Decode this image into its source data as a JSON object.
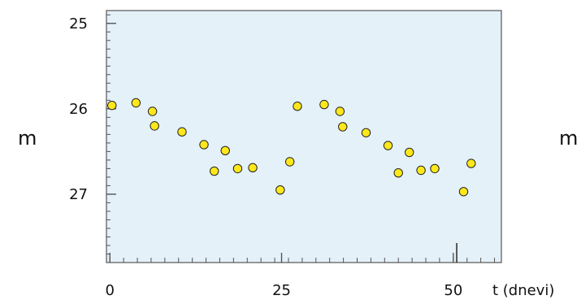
{
  "chart_data": {
    "type": "scatter",
    "title": "",
    "ylabel": "m",
    "xlabel": "t (dnevi)",
    "right_label": "m",
    "y_inverted": true,
    "xlim": [
      -0.5,
      57
    ],
    "ylim": [
      27.8,
      24.85
    ],
    "x_ticks": [
      0,
      25,
      50
    ],
    "x_tick_labels": [
      "0",
      "25",
      "50"
    ],
    "y_ticks": [
      25,
      26,
      27
    ],
    "y_tick_labels": [
      "25",
      "26",
      "27"
    ],
    "points": [
      {
        "x": 0.3,
        "y": 25.96
      },
      {
        "x": 3.8,
        "y": 25.93
      },
      {
        "x": 6.2,
        "y": 26.03
      },
      {
        "x": 6.5,
        "y": 26.2
      },
      {
        "x": 10.5,
        "y": 26.27
      },
      {
        "x": 13.7,
        "y": 26.42
      },
      {
        "x": 15.2,
        "y": 26.73
      },
      {
        "x": 16.8,
        "y": 26.49
      },
      {
        "x": 18.6,
        "y": 26.7
      },
      {
        "x": 20.8,
        "y": 26.69
      },
      {
        "x": 24.8,
        "y": 26.95
      },
      {
        "x": 26.2,
        "y": 26.62
      },
      {
        "x": 27.3,
        "y": 25.97
      },
      {
        "x": 31.2,
        "y": 25.95
      },
      {
        "x": 33.5,
        "y": 26.03
      },
      {
        "x": 33.9,
        "y": 26.21
      },
      {
        "x": 37.3,
        "y": 26.28
      },
      {
        "x": 40.5,
        "y": 26.43
      },
      {
        "x": 42.0,
        "y": 26.75
      },
      {
        "x": 43.6,
        "y": 26.51
      },
      {
        "x": 45.3,
        "y": 26.72
      },
      {
        "x": 47.3,
        "y": 26.7
      },
      {
        "x": 51.5,
        "y": 26.97
      },
      {
        "x": 52.6,
        "y": 26.64
      }
    ],
    "colors": {
      "plot_background": "#e4f1f9",
      "point_fill": "#ffe81a",
      "point_stroke": "#222222",
      "axis": "#555555",
      "marker_line": "#333333"
    },
    "marker_line_x": 50.5
  }
}
